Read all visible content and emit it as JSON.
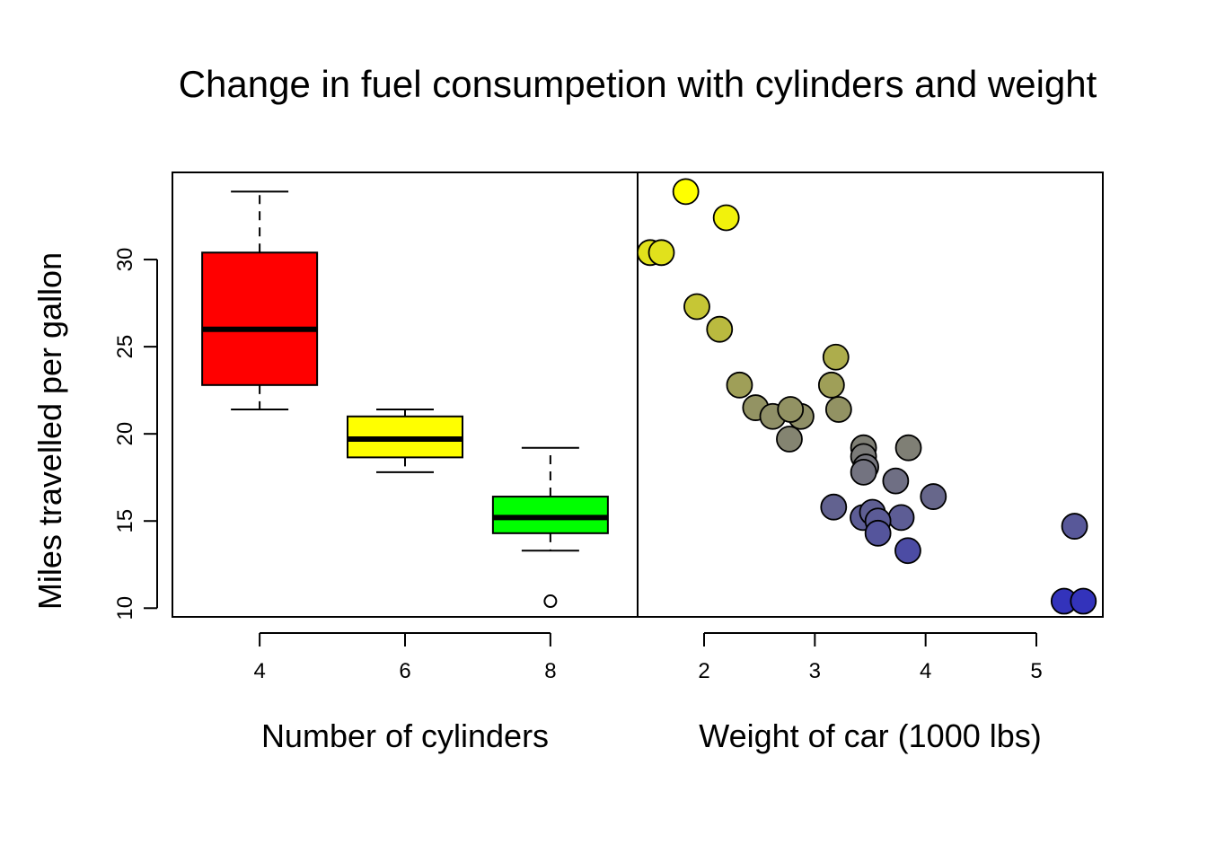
{
  "chart_data": {
    "title": "Change in fuel consumpetion with cylinders and weight",
    "ylabel": "Miles travelled per gallon",
    "ylim": [
      9.5,
      35.0
    ],
    "y_ticks": [
      10,
      15,
      20,
      25,
      30
    ],
    "panels": [
      {
        "type": "box",
        "xlabel": "Number of cylinders",
        "categories": [
          "4",
          "6",
          "8"
        ],
        "fill_colors": [
          "#ff0000",
          "#ffff00",
          "#00ff00"
        ],
        "boxes": [
          {
            "category": "4",
            "whisker_low": 21.4,
            "q1": 22.8,
            "median": 26.0,
            "q3": 30.4,
            "whisker_high": 33.9,
            "outliers": []
          },
          {
            "category": "6",
            "whisker_low": 17.8,
            "q1": 18.65,
            "median": 19.7,
            "q3": 21.0,
            "whisker_high": 21.4,
            "outliers": []
          },
          {
            "category": "8",
            "whisker_low": 13.3,
            "q1": 14.3,
            "median": 15.2,
            "q3": 16.4,
            "whisker_high": 19.2,
            "outliers": [
              10.4
            ]
          }
        ]
      },
      {
        "type": "scatter",
        "xlabel": "Weight of car (1000 lbs)",
        "xlim": [
          1.4,
          5.6
        ],
        "x_ticks": [
          2,
          3,
          4,
          5
        ],
        "color_high_mpg": "#ffff00",
        "color_low_mpg": "#3333bb",
        "points": [
          {
            "x": 1.835,
            "y": 33.9
          },
          {
            "x": 2.2,
            "y": 32.4
          },
          {
            "x": 1.513,
            "y": 30.4
          },
          {
            "x": 1.615,
            "y": 30.4
          },
          {
            "x": 1.935,
            "y": 27.3
          },
          {
            "x": 2.14,
            "y": 26.0
          },
          {
            "x": 3.19,
            "y": 24.4
          },
          {
            "x": 2.32,
            "y": 22.8
          },
          {
            "x": 3.15,
            "y": 22.8
          },
          {
            "x": 2.465,
            "y": 21.5
          },
          {
            "x": 2.62,
            "y": 21.0
          },
          {
            "x": 2.875,
            "y": 21.0
          },
          {
            "x": 2.78,
            "y": 21.4
          },
          {
            "x": 3.215,
            "y": 21.4
          },
          {
            "x": 2.77,
            "y": 19.7
          },
          {
            "x": 3.44,
            "y": 19.2
          },
          {
            "x": 3.845,
            "y": 19.2
          },
          {
            "x": 3.44,
            "y": 18.7
          },
          {
            "x": 3.46,
            "y": 18.1
          },
          {
            "x": 3.44,
            "y": 17.8
          },
          {
            "x": 3.73,
            "y": 17.3
          },
          {
            "x": 4.07,
            "y": 16.4
          },
          {
            "x": 3.17,
            "y": 15.8
          },
          {
            "x": 3.435,
            "y": 15.2
          },
          {
            "x": 3.78,
            "y": 15.2
          },
          {
            "x": 3.52,
            "y": 15.5
          },
          {
            "x": 3.57,
            "y": 15.0
          },
          {
            "x": 5.345,
            "y": 14.7
          },
          {
            "x": 3.57,
            "y": 14.3
          },
          {
            "x": 3.84,
            "y": 13.3
          },
          {
            "x": 5.25,
            "y": 10.4
          },
          {
            "x": 5.424,
            "y": 10.4
          }
        ]
      }
    ]
  }
}
